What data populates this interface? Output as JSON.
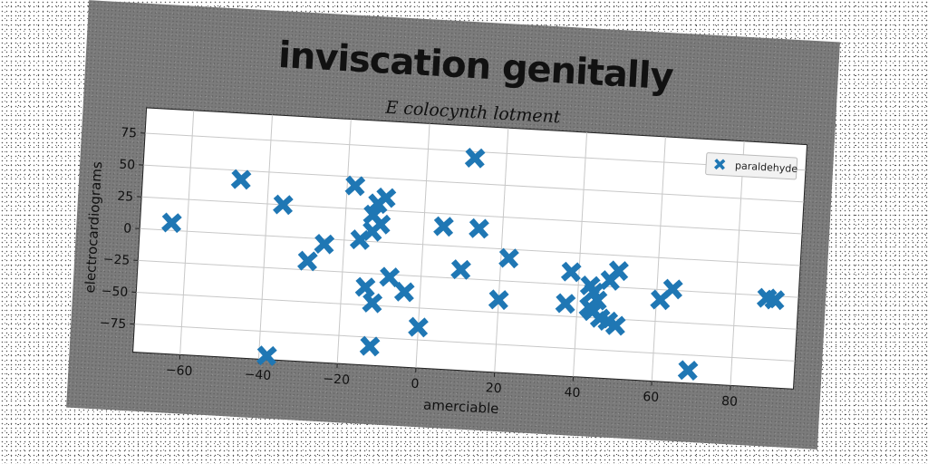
{
  "chart_data": {
    "type": "scatter",
    "title": "inviscation genitally",
    "subtitle": "E colocynth lotment",
    "xlabel": "amerciable",
    "ylabel": "electrocardiograms",
    "xlim": [
      -72,
      96
    ],
    "ylim": [
      -97,
      95
    ],
    "xticks": [
      -60,
      -40,
      -20,
      0,
      20,
      40,
      60,
      80
    ],
    "yticks": [
      75,
      50,
      25,
      0,
      -25,
      -50,
      -75
    ],
    "xtick_labels": [
      "−60",
      "−40",
      "−20",
      "0",
      "20",
      "40",
      "60",
      "80"
    ],
    "ytick_labels": [
      "75",
      "50",
      "25",
      "0",
      "−25",
      "−50",
      "−75"
    ],
    "grid": true,
    "legend_position": "top-right",
    "marker": "X",
    "color": "#1f77b4",
    "series": [
      {
        "name": "paraldehyde",
        "points": [
          [
            -64,
            6
          ],
          [
            -47,
            43
          ],
          [
            -38,
            -94
          ],
          [
            -36,
            25
          ],
          [
            -29,
            -18
          ],
          [
            -25,
            -4
          ],
          [
            -18,
            43
          ],
          [
            -16,
            1
          ],
          [
            -14,
            -36
          ],
          [
            -13,
            8
          ],
          [
            -13,
            21
          ],
          [
            -12,
            30
          ],
          [
            -12,
            -48
          ],
          [
            -12,
            -82
          ],
          [
            -11,
            14
          ],
          [
            -10,
            35
          ],
          [
            -8,
            -27
          ],
          [
            -4,
            -38
          ],
          [
            0,
            -65
          ],
          [
            5,
            15
          ],
          [
            10,
            -18
          ],
          [
            12,
            70
          ],
          [
            14,
            15
          ],
          [
            20,
            -40
          ],
          [
            22,
            -7
          ],
          [
            37,
            -40
          ],
          [
            38,
            -15
          ],
          [
            43,
            -25
          ],
          [
            43,
            -42
          ],
          [
            44,
            -30
          ],
          [
            44,
            -45
          ],
          [
            45,
            -36
          ],
          [
            46,
            -50
          ],
          [
            48,
            -20
          ],
          [
            48,
            -52
          ],
          [
            50,
            -12
          ],
          [
            50,
            -55
          ],
          [
            61,
            -33
          ],
          [
            64,
            -24
          ],
          [
            69,
            -87
          ],
          [
            88,
            -27
          ],
          [
            90,
            -28
          ]
        ]
      }
    ]
  }
}
